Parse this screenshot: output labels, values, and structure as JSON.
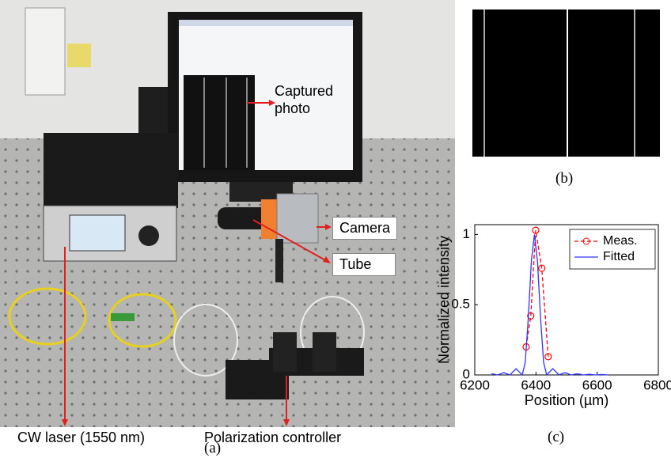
{
  "panel_a": {
    "labels": {
      "captured_photo": "Captured photo",
      "camera": "Camera",
      "tube": "Tube",
      "cw_laser": "CW laser (1550 nm)",
      "polarization_controller": "Polarization controller"
    },
    "caption": "(a)"
  },
  "panel_b": {
    "caption": "(b)"
  },
  "panel_c": {
    "caption": "(c)"
  },
  "chart_data": {
    "type": "line",
    "xlabel": "Position (µm)",
    "ylabel": "Normalized intensity",
    "xlim": [
      6200,
      6800
    ],
    "ylim": [
      0,
      1.07
    ],
    "xticks": [
      6200,
      6400,
      6600,
      6800
    ],
    "yticks": [
      0,
      0.5,
      1
    ],
    "grid": false,
    "legend": "upper right",
    "series": [
      {
        "name": "Meas.",
        "color": "#ff0000",
        "linestyle": "dashed",
        "marker": "circle",
        "x": [
          6368,
          6383,
          6399,
          6419,
          6440
        ],
        "values": [
          0.2,
          0.42,
          1.03,
          0.76,
          0.13
        ]
      },
      {
        "name": "Fitted",
        "color": "#3333ff",
        "linestyle": "solid",
        "marker": "none",
        "x": [
          6255,
          6275,
          6295,
          6315,
          6335,
          6355,
          6365,
          6375,
          6385,
          6395,
          6405,
          6415,
          6425,
          6435,
          6455,
          6475,
          6495,
          6515,
          6535,
          6555,
          6575,
          6595,
          6615,
          6635
        ],
        "values": [
          0.0083,
          0,
          0.0162,
          0,
          0.045,
          0,
          0.0901,
          0.4053,
          0.8106,
          1,
          0.8106,
          0.4053,
          0.0901,
          0,
          0.045,
          0,
          0.0162,
          0,
          0.0083,
          0,
          0.005,
          0,
          0.0033,
          0
        ]
      }
    ]
  }
}
